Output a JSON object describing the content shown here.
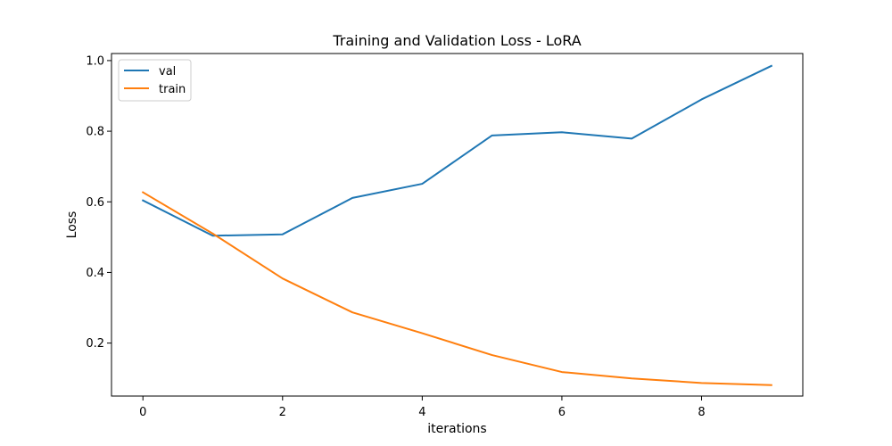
{
  "chart_data": {
    "type": "line",
    "title": "Training and Validation Loss - LoRA",
    "xlabel": "iterations",
    "ylabel": "Loss",
    "x": [
      0,
      1,
      2,
      3,
      4,
      5,
      6,
      7,
      8,
      9
    ],
    "xlim": [
      -0.45,
      9.45
    ],
    "ylim": [
      0.05,
      1.02
    ],
    "xticks": [
      0,
      2,
      4,
      6,
      8
    ],
    "xtick_labels": [
      "0",
      "2",
      "4",
      "6",
      "8"
    ],
    "yticks": [
      0.2,
      0.4,
      0.6,
      0.8,
      1.0
    ],
    "ytick_labels": [
      "0.2",
      "0.4",
      "0.6",
      "0.8",
      "1.0"
    ],
    "grid": false,
    "legend_position": "top-left",
    "series": [
      {
        "name": "val",
        "color": "#1f77b4",
        "values": [
          0.604,
          0.504,
          0.508,
          0.611,
          0.651,
          0.788,
          0.797,
          0.779,
          0.89,
          0.985
        ]
      },
      {
        "name": "train",
        "color": "#ff7f0e",
        "values": [
          0.627,
          0.51,
          0.383,
          0.287,
          0.228,
          0.166,
          0.118,
          0.1,
          0.087,
          0.081
        ]
      }
    ]
  }
}
